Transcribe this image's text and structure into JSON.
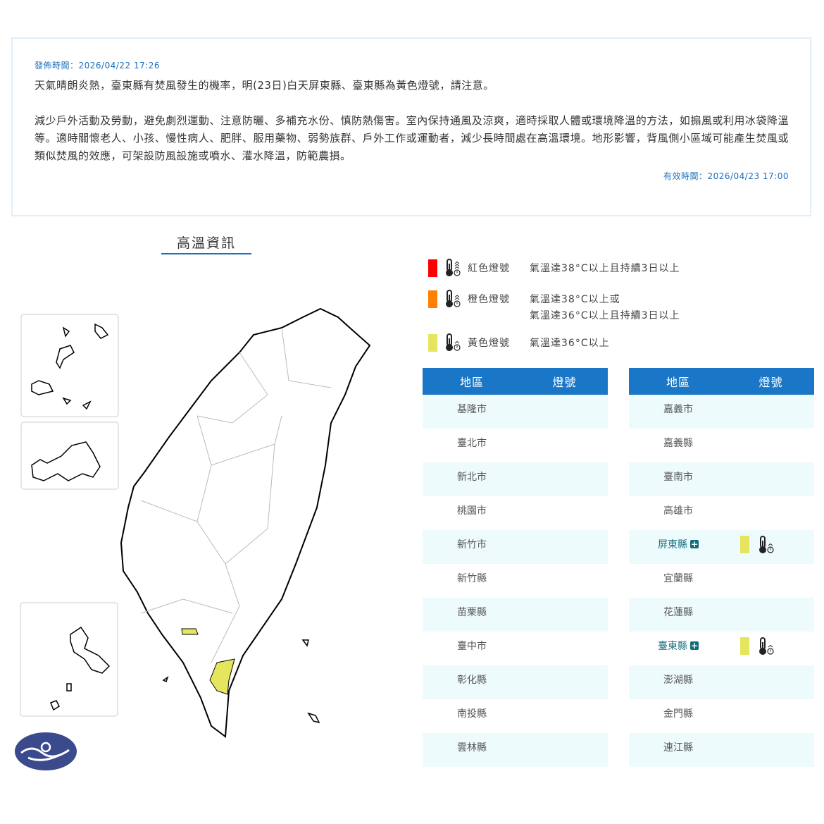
{
  "notice": {
    "published": "發佈時間：2026/04/22 17:26",
    "summary": "天氣晴朗炎熱，臺東縣有焚風發生的機率，明(23日)白天屏東縣、臺東縣為黃色燈號，請注意。",
    "advice": "減少戶外活動及勞動，避免劇烈運動、注意防曬、多補充水份、慎防熱傷害。室內保持通風及涼爽，適時採取人體或環境降溫的方法，如搧風或利用冰袋降溫等。適時關懷老人、小孩、慢性病人、肥胖、服用藥物、弱勢族群、戶外工作或運動者，減少長時間處在高溫環境。地形影響，背風側小區域可能產生焚風或類似焚風的效應，可架設防風設施或噴水、灌水降溫，防範農損。",
    "valid": "有效時間：2026/04/23 17:00"
  },
  "section_title": "高溫資訊",
  "legend": [
    {
      "label": "紅色燈號",
      "desc1": "氣溫達38°C以上且持續3日以上",
      "desc2": "",
      "color": "#ff0000"
    },
    {
      "label": "橙色燈號",
      "desc1": "氣溫達38°C以上或",
      "desc2": "氣溫達36°C以上且持續3日以上",
      "color": "#ff8000"
    },
    {
      "label": "黃色燈號",
      "desc1": "氣溫達36°C以上",
      "desc2": "",
      "color": "#e6e65e"
    }
  ],
  "table": {
    "col_region": "地區",
    "col_signal": "燈號",
    "left": [
      "基隆市",
      "臺北市",
      "新北市",
      "桃園市",
      "新竹市",
      "新竹縣",
      "苗栗縣",
      "臺中市",
      "彰化縣",
      "南投縣",
      "雲林縣"
    ],
    "right": [
      "嘉義市",
      "嘉義縣",
      "臺南市",
      "高雄市",
      "屏東縣",
      "宜蘭縣",
      "花蓮縣",
      "臺東縣",
      "澎湖縣",
      "金門縣",
      "連江縣"
    ],
    "right_signals": {
      "屏東縣": "yellow",
      "臺東縣": "yellow"
    }
  }
}
